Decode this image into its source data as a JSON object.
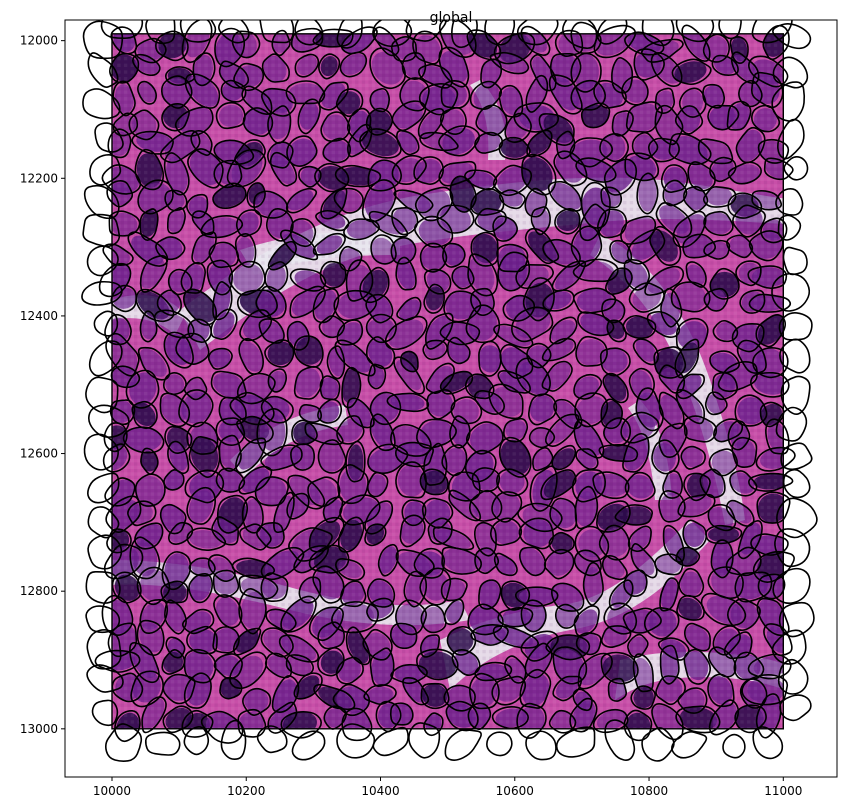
{
  "chart_data": {
    "type": "heatmap",
    "title": "global",
    "xlabel": "",
    "ylabel": "",
    "xlim": [
      9930,
      11080
    ],
    "ylim": [
      13070,
      11970
    ],
    "y_inverted": true,
    "x_ticks": [
      10000,
      10200,
      10400,
      10600,
      10800,
      11000
    ],
    "y_ticks": [
      12000,
      12200,
      12400,
      12600,
      12800,
      13000
    ],
    "image_extent": {
      "x": [
        10000,
        11000
      ],
      "y": [
        11990,
        13000
      ]
    },
    "colors": {
      "background_stroma": "#e8e6ee",
      "eosin_pink": "#c84fa8",
      "hematoxylin_purple": "#6a1f8c",
      "nucleus_dark": "#2a0a4a",
      "cell_outline": "#000000"
    },
    "grid": false,
    "legend": "none"
  }
}
